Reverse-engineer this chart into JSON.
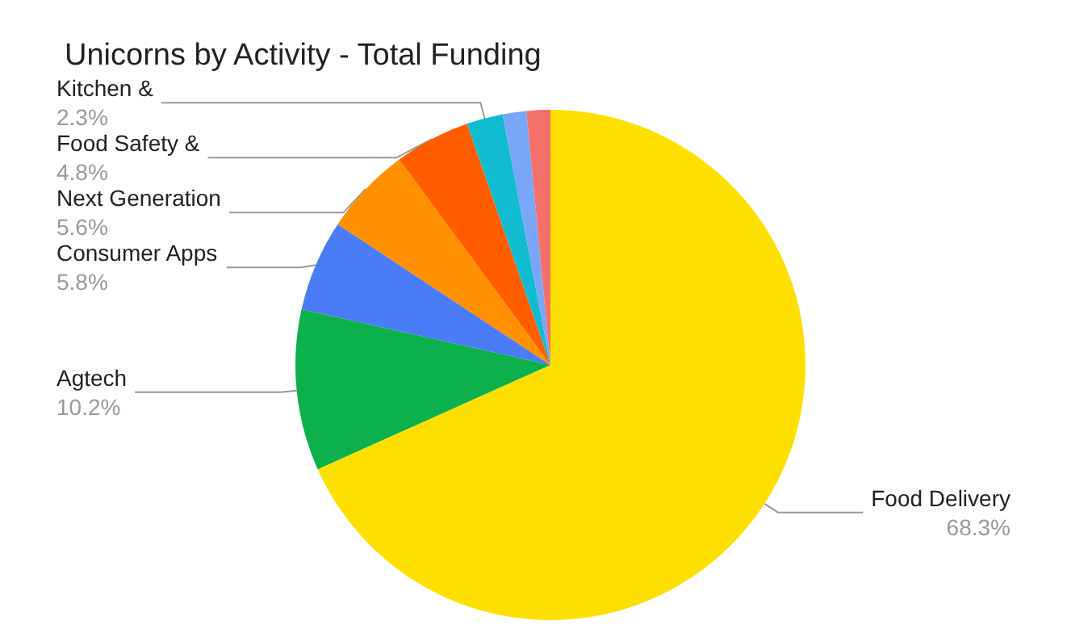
{
  "chart_data": {
    "type": "pie",
    "title": "Unicorns by Activity - Total Funding",
    "categories": [
      "Food Delivery",
      "Agtech",
      "Consumer Apps",
      "Next Generation",
      "Food Safety &",
      "Kitchen &",
      null,
      null
    ],
    "values": [
      68.3,
      10.2,
      5.8,
      5.6,
      4.8,
      2.3,
      1.5,
      1.5
    ],
    "value_labels": [
      "68.3%",
      "10.2%",
      "5.8%",
      "5.6%",
      "4.8%",
      "2.3%",
      null,
      null
    ],
    "colors": [
      "#fde000",
      "#0db14b",
      "#4a7cf7",
      "#ff9100",
      "#ff5d00",
      "#12bcd0",
      "#7aa6f7",
      "#f4706a"
    ],
    "legend": false
  }
}
